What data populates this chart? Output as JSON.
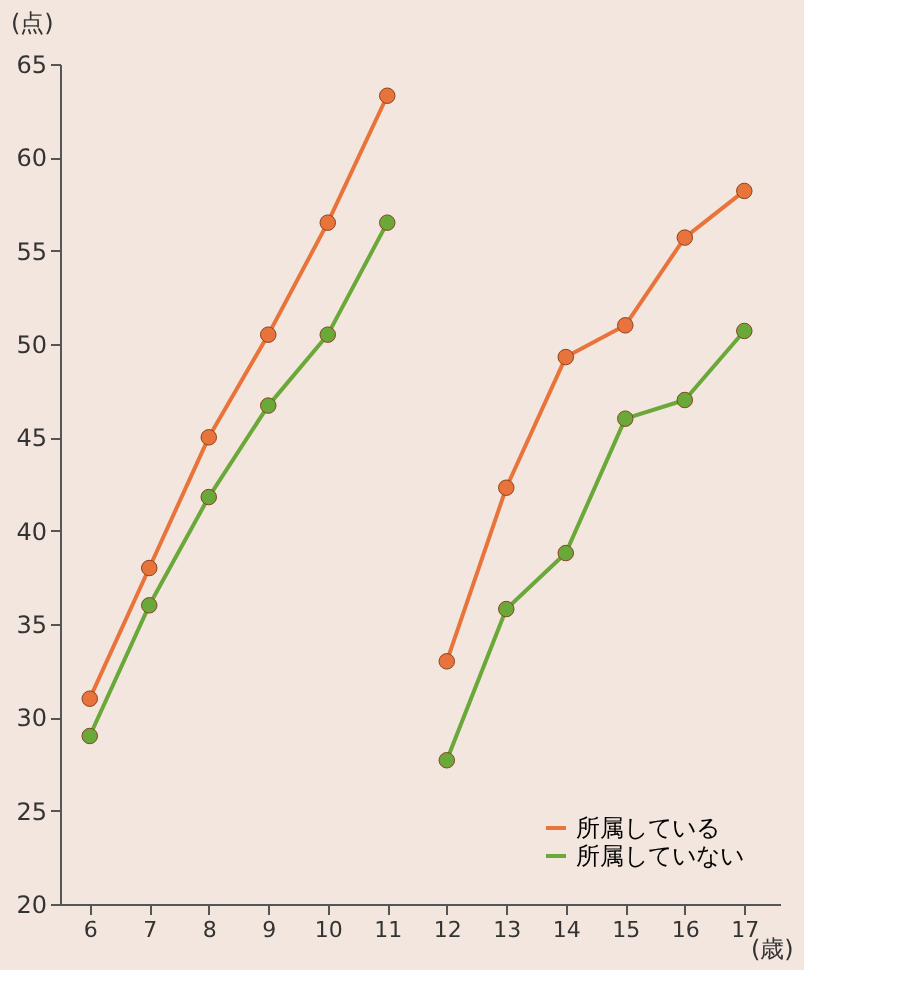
{
  "chart_data": {
    "type": "line",
    "xlabel": "(歳)",
    "ylabel": "(点)",
    "xlim": [
      5.5,
      17.6
    ],
    "xticks": [
      6,
      7,
      8,
      9,
      10,
      11,
      12,
      13,
      14,
      15,
      16,
      17
    ],
    "ylim": [
      20,
      65
    ],
    "yticks": [
      20,
      25,
      30,
      35,
      40,
      45,
      50,
      55,
      60,
      65
    ],
    "grid": false,
    "legend": "bottom right",
    "marker": "circle",
    "line_style": "solid",
    "series": [
      {
        "name": "所属している",
        "color": "#e8743b",
        "x": [
          6,
          7,
          8,
          9,
          10,
          11,
          null,
          12,
          13,
          14,
          15,
          16,
          17
        ],
        "values": [
          31,
          38,
          45,
          50.5,
          56.5,
          63.3,
          null,
          33,
          42.3,
          49.3,
          51,
          55.7,
          58.2
        ]
      },
      {
        "name": "所属していない",
        "color": "#6aa83a",
        "x": [
          6,
          7,
          8,
          9,
          10,
          11,
          null,
          12,
          13,
          14,
          15,
          16,
          17
        ],
        "values": [
          29,
          36,
          41.8,
          46.7,
          50.5,
          56.5,
          null,
          27.7,
          35.8,
          38.8,
          46,
          47,
          50.7
        ]
      }
    ]
  }
}
